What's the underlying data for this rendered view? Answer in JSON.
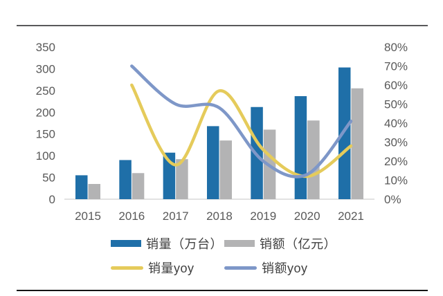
{
  "chart_data": {
    "type": "bar+line-combo",
    "categories": [
      "2015",
      "2016",
      "2017",
      "2018",
      "2019",
      "2020",
      "2021"
    ],
    "series": [
      {
        "name": "销量（万台）",
        "type": "bar",
        "axis": "left",
        "color": "#1F6FA8",
        "values": [
          55,
          90,
          107,
          168,
          212,
          237,
          303
        ]
      },
      {
        "name": "销额（亿元）",
        "type": "bar",
        "axis": "left",
        "color": "#B3B3B4",
        "values": [
          35,
          60,
          92,
          135,
          160,
          181,
          255
        ]
      },
      {
        "name": "销量yoy",
        "type": "line",
        "axis": "right",
        "color": "#E5CB5B",
        "values": [
          null,
          60,
          18,
          57,
          26,
          12,
          28
        ]
      },
      {
        "name": "销额yoy",
        "type": "line",
        "axis": "right",
        "color": "#7E97C8",
        "values": [
          null,
          70,
          50,
          48,
          20,
          13,
          41
        ]
      }
    ],
    "left_axis": {
      "min": 0,
      "max": 350,
      "ticks": [
        0,
        50,
        100,
        150,
        200,
        250,
        300,
        350
      ]
    },
    "right_axis": {
      "min": 0,
      "max": 80,
      "tick_step_pct": 10,
      "ticks": [
        "0%",
        "10%",
        "20%",
        "30%",
        "40%",
        "50%",
        "60%",
        "70%",
        "80%"
      ]
    },
    "legend_position": "bottom",
    "grid": "off",
    "axis_text_color": "#595959",
    "baseline_color": "#D9D9D9"
  },
  "page": {
    "top_rule_color": "#58585A",
    "bottom_rule_color": "#141414"
  }
}
